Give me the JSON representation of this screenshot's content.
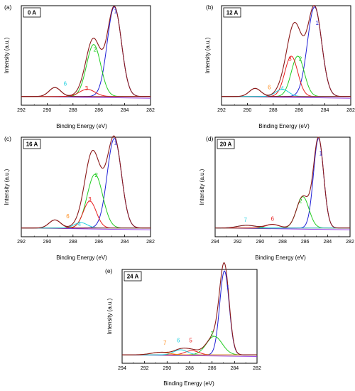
{
  "chart_data": [
    {
      "type": "line",
      "panel_tag": "(a)",
      "condition": "0 A",
      "xlabel": "Binding Energy (eV)",
      "ylabel": "Intensity (a.u.)",
      "xlim": [
        292,
        282
      ],
      "xticks": [
        292,
        290,
        288,
        286,
        284,
        282
      ],
      "envelope": {
        "color": "#8B1A1A",
        "baseline": 0.05
      },
      "peaks": [
        {
          "label": "1",
          "center": 284.8,
          "height": 1.0,
          "width": 0.55,
          "color": "#1f1fd6"
        },
        {
          "label": "2",
          "center": 286.4,
          "height": 0.58,
          "width": 0.55,
          "color": "#22cc22"
        },
        {
          "label": "3",
          "center": 286.9,
          "height": 0.08,
          "width": 0.6,
          "color": "#e81e1e"
        },
        {
          "label": "6",
          "center": 289.4,
          "height": 0.1,
          "width": 0.45,
          "color": "#8B1A1A"
        }
      ],
      "annotations": [
        {
          "text": "1",
          "x": 284.7,
          "y": 0.98,
          "color": "#1f1fd6"
        },
        {
          "text": "2",
          "x": 286.3,
          "y": 0.55,
          "color": "#22cc22"
        },
        {
          "text": "3",
          "x": 286.95,
          "y": 0.12,
          "color": "#e81e1e"
        },
        {
          "text": "6",
          "x": 288.6,
          "y": 0.17,
          "color": "#21d0e0"
        }
      ]
    },
    {
      "type": "line",
      "panel_tag": "(b)",
      "condition": "12 A",
      "xlabel": "Binding Energy (eV)",
      "ylabel": "Intensity (a.u.)",
      "xlim": [
        292,
        282
      ],
      "xticks": [
        292,
        290,
        288,
        286,
        284,
        282
      ],
      "envelope": {
        "color": "#8B1A1A",
        "baseline": 0.05
      },
      "peaks": [
        {
          "label": "1",
          "center": 284.8,
          "height": 1.0,
          "width": 0.55,
          "color": "#1f1fd6"
        },
        {
          "label": "2",
          "center": 286.1,
          "height": 0.45,
          "width": 0.5,
          "color": "#22cc22"
        },
        {
          "label": "3",
          "center": 286.6,
          "height": 0.45,
          "width": 0.5,
          "color": "#e81e1e"
        },
        {
          "label": "4",
          "center": 287.3,
          "height": 0.08,
          "width": 0.5,
          "color": "#21d0e0"
        },
        {
          "label": "6",
          "center": 289.4,
          "height": 0.09,
          "width": 0.45,
          "color": "#8B1A1A"
        }
      ],
      "annotations": [
        {
          "text": "1",
          "x": 284.6,
          "y": 0.85,
          "color": "#1f1fd6"
        },
        {
          "text": "2",
          "x": 285.9,
          "y": 0.45,
          "color": "#22cc22"
        },
        {
          "text": "3",
          "x": 286.7,
          "y": 0.45,
          "color": "#e81e1e"
        },
        {
          "text": "4",
          "x": 287.3,
          "y": 0.12,
          "color": "#21d0e0"
        },
        {
          "text": "6",
          "x": 288.3,
          "y": 0.13,
          "color": "#ff8c1a"
        }
      ]
    },
    {
      "type": "line",
      "panel_tag": "(c)",
      "condition": "16 A",
      "xlabel": "Binding Energy (eV)",
      "ylabel": "Intensity (a.u.)",
      "xlim": [
        292,
        282
      ],
      "xticks": [
        292,
        290,
        288,
        286,
        284,
        282
      ],
      "envelope": {
        "color": "#8B1A1A",
        "baseline": 0.05
      },
      "peaks": [
        {
          "label": "1",
          "center": 284.8,
          "height": 1.0,
          "width": 0.55,
          "color": "#1f1fd6"
        },
        {
          "label": "2",
          "center": 286.3,
          "height": 0.6,
          "width": 0.6,
          "color": "#22cc22"
        },
        {
          "label": "3",
          "center": 286.7,
          "height": 0.3,
          "width": 0.5,
          "color": "#e81e1e"
        },
        {
          "label": "4",
          "center": 287.4,
          "height": 0.06,
          "width": 0.5,
          "color": "#21d0e0"
        },
        {
          "label": "6",
          "center": 289.4,
          "height": 0.09,
          "width": 0.45,
          "color": "#8B1A1A"
        }
      ],
      "annotations": [
        {
          "text": "1",
          "x": 284.7,
          "y": 0.98,
          "color": "#1f1fd6"
        },
        {
          "text": "2",
          "x": 286.2,
          "y": 0.62,
          "color": "#22cc22"
        },
        {
          "text": "3",
          "x": 286.7,
          "y": 0.35,
          "color": "#e81e1e"
        },
        {
          "text": "4",
          "x": 287.5,
          "y": 0.07,
          "color": "#21d0e0"
        },
        {
          "text": "6",
          "x": 288.4,
          "y": 0.16,
          "color": "#ff8c1a"
        }
      ]
    },
    {
      "type": "line",
      "panel_tag": "(d)",
      "condition": "20 A",
      "xlabel": "Binding Energy (eV)",
      "ylabel": "Intensity (a.u.)",
      "xlim": [
        294,
        282
      ],
      "xticks": [
        294,
        292,
        290,
        288,
        286,
        284,
        282
      ],
      "envelope": {
        "color": "#8B1A1A",
        "baseline": 0.05
      },
      "peaks": [
        {
          "label": "1",
          "center": 284.8,
          "height": 1.0,
          "width": 0.45,
          "color": "#1f1fd6"
        },
        {
          "label": "2",
          "center": 286.2,
          "height": 0.35,
          "width": 0.55,
          "color": "#22cc22"
        },
        {
          "label": "6",
          "center": 288.9,
          "height": 0.04,
          "width": 0.6,
          "color": "#e81e1e"
        },
        {
          "label": "7",
          "center": 291.2,
          "height": 0.03,
          "width": 0.8,
          "color": "#21d0e0"
        }
      ],
      "annotations": [
        {
          "text": "1",
          "x": 284.6,
          "y": 0.86,
          "color": "#1f1fd6"
        },
        {
          "text": "2",
          "x": 286.4,
          "y": 0.33,
          "color": "#22cc22"
        },
        {
          "text": "6",
          "x": 288.9,
          "y": 0.13,
          "color": "#e81e1e"
        },
        {
          "text": "7",
          "x": 291.3,
          "y": 0.12,
          "color": "#21d0e0"
        }
      ]
    },
    {
      "type": "line",
      "panel_tag": "(e)",
      "condition": "24 A",
      "xlabel": "Binding Energy (eV)",
      "ylabel": "Intensity (a.u.)",
      "xlim": [
        294,
        282
      ],
      "xticks": [
        294,
        292,
        290,
        288,
        286,
        284,
        282
      ],
      "envelope": {
        "color": "#8B1A1A",
        "baseline": 0.05
      },
      "peaks": [
        {
          "label": "1",
          "center": 284.9,
          "height": 1.0,
          "width": 0.42,
          "color": "#1f1fd6"
        },
        {
          "label": "2",
          "center": 285.8,
          "height": 0.22,
          "width": 0.7,
          "color": "#22cc22"
        },
        {
          "label": "5",
          "center": 287.8,
          "height": 0.05,
          "width": 0.6,
          "color": "#e81e1e"
        },
        {
          "label": "6",
          "center": 288.8,
          "height": 0.06,
          "width": 0.6,
          "color": "#21d0e0"
        },
        {
          "label": "7",
          "center": 290.6,
          "height": 0.03,
          "width": 0.8,
          "color": "#ff8c1a"
        }
      ],
      "annotations": [
        {
          "text": "1",
          "x": 284.6,
          "y": 0.83,
          "color": "#1f1fd6"
        },
        {
          "text": "2",
          "x": 286.0,
          "y": 0.28,
          "color": "#22cc22"
        },
        {
          "text": "5",
          "x": 287.9,
          "y": 0.2,
          "color": "#e81e1e"
        },
        {
          "text": "6",
          "x": 289.0,
          "y": 0.2,
          "color": "#21d0e0"
        },
        {
          "text": "7",
          "x": 290.2,
          "y": 0.17,
          "color": "#ff8c1a"
        }
      ]
    }
  ]
}
